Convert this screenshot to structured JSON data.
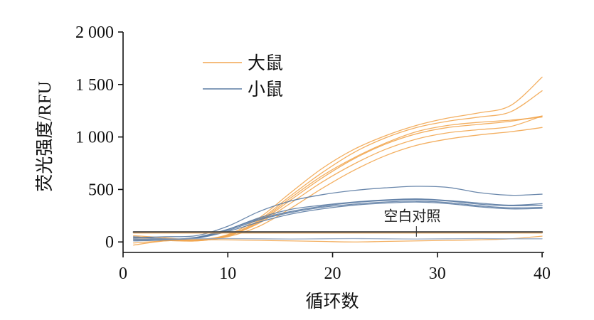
{
  "chart_data": {
    "type": "line",
    "xlabel": "循环数",
    "ylabel": "荧光强度/RFU",
    "xlim": [
      0,
      40.2
    ],
    "ylim": [
      -100,
      2000
    ],
    "grid": false,
    "xticks": {
      "values": [
        0,
        10,
        20,
        30,
        40
      ],
      "labels": [
        "0",
        "10",
        "20",
        "30",
        "40"
      ]
    },
    "yticks": {
      "values": [
        0,
        500,
        1000,
        1500,
        2000
      ],
      "labels": [
        "0",
        "500",
        "1 000",
        "1 500",
        "2 000"
      ]
    },
    "legend": {
      "placement": "upper-left",
      "entries": [
        {
          "label": "大鼠",
          "color": "#f2a650"
        },
        {
          "label": "小鼠",
          "color": "#5b7ba3"
        }
      ]
    },
    "x": [
      1,
      4,
      7,
      10,
      13,
      16,
      19,
      22,
      25,
      28,
      31,
      34,
      37,
      40
    ],
    "series": [
      {
        "color": "#f2a650",
        "values": [
          -30,
          10,
          20,
          70,
          230,
          470,
          700,
          880,
          1010,
          1110,
          1180,
          1230,
          1300,
          1570
        ]
      },
      {
        "color": "#f2a650",
        "values": [
          40,
          30,
          15,
          60,
          210,
          440,
          660,
          850,
          990,
          1090,
          1150,
          1190,
          1240,
          1440
        ]
      },
      {
        "color": "#f2a650",
        "values": [
          20,
          20,
          10,
          55,
          190,
          400,
          610,
          790,
          930,
          1030,
          1090,
          1120,
          1150,
          1200
        ]
      },
      {
        "color": "#f2a650",
        "values": [
          50,
          30,
          20,
          60,
          180,
          370,
          570,
          740,
          880,
          980,
          1040,
          1070,
          1100,
          1200
        ]
      },
      {
        "color": "#f2a650",
        "values": [
          30,
          15,
          10,
          50,
          150,
          320,
          510,
          680,
          820,
          920,
          980,
          1020,
          1050,
          1090
        ]
      },
      {
        "color": "#f2a650",
        "values": [
          60,
          40,
          20,
          65,
          200,
          420,
          630,
          800,
          940,
          1050,
          1110,
          1140,
          1160,
          1190
        ]
      },
      {
        "color": "#5b7ba3",
        "values": [
          40,
          50,
          60,
          150,
          290,
          390,
          450,
          490,
          515,
          530,
          520,
          470,
          445,
          455
        ]
      },
      {
        "color": "#5b7ba3",
        "values": [
          30,
          20,
          40,
          120,
          230,
          310,
          350,
          380,
          400,
          410,
          395,
          370,
          350,
          365
        ]
      },
      {
        "color": "#5b7ba3",
        "values": [
          10,
          20,
          45,
          120,
          220,
          290,
          340,
          375,
          395,
          405,
          390,
          360,
          345,
          350
        ]
      },
      {
        "color": "#5b7ba3",
        "values": [
          50,
          30,
          40,
          110,
          210,
          280,
          330,
          360,
          380,
          390,
          375,
          345,
          325,
          330
        ]
      },
      {
        "color": "#5b7ba3",
        "values": [
          20,
          25,
          35,
          100,
          190,
          265,
          315,
          350,
          370,
          380,
          365,
          335,
          315,
          320
        ]
      },
      {
        "color": "#f2a650",
        "values": [
          -10,
          10,
          20,
          20,
          15,
          10,
          5,
          0,
          5,
          10,
          15,
          20,
          30,
          55
        ]
      },
      {
        "color": "#8fa3bf",
        "values": [
          30,
          28,
          30,
          32,
          30,
          28,
          30,
          32,
          30,
          28,
          30,
          32,
          30,
          30
        ]
      },
      {
        "color": "#f2a650",
        "values": [
          85,
          85,
          85,
          85,
          85,
          85,
          85,
          85,
          85,
          85,
          85,
          85,
          85,
          85
        ]
      },
      {
        "color": "#4d4d4d",
        "values": [
          95,
          95,
          95,
          95,
          95,
          95,
          95,
          95,
          95,
          95,
          95,
          95,
          95,
          95
        ]
      }
    ],
    "annotations": [
      {
        "text": "空白对照",
        "x": 28,
        "y": 250,
        "pointer": [
          150,
          50
        ]
      }
    ]
  }
}
